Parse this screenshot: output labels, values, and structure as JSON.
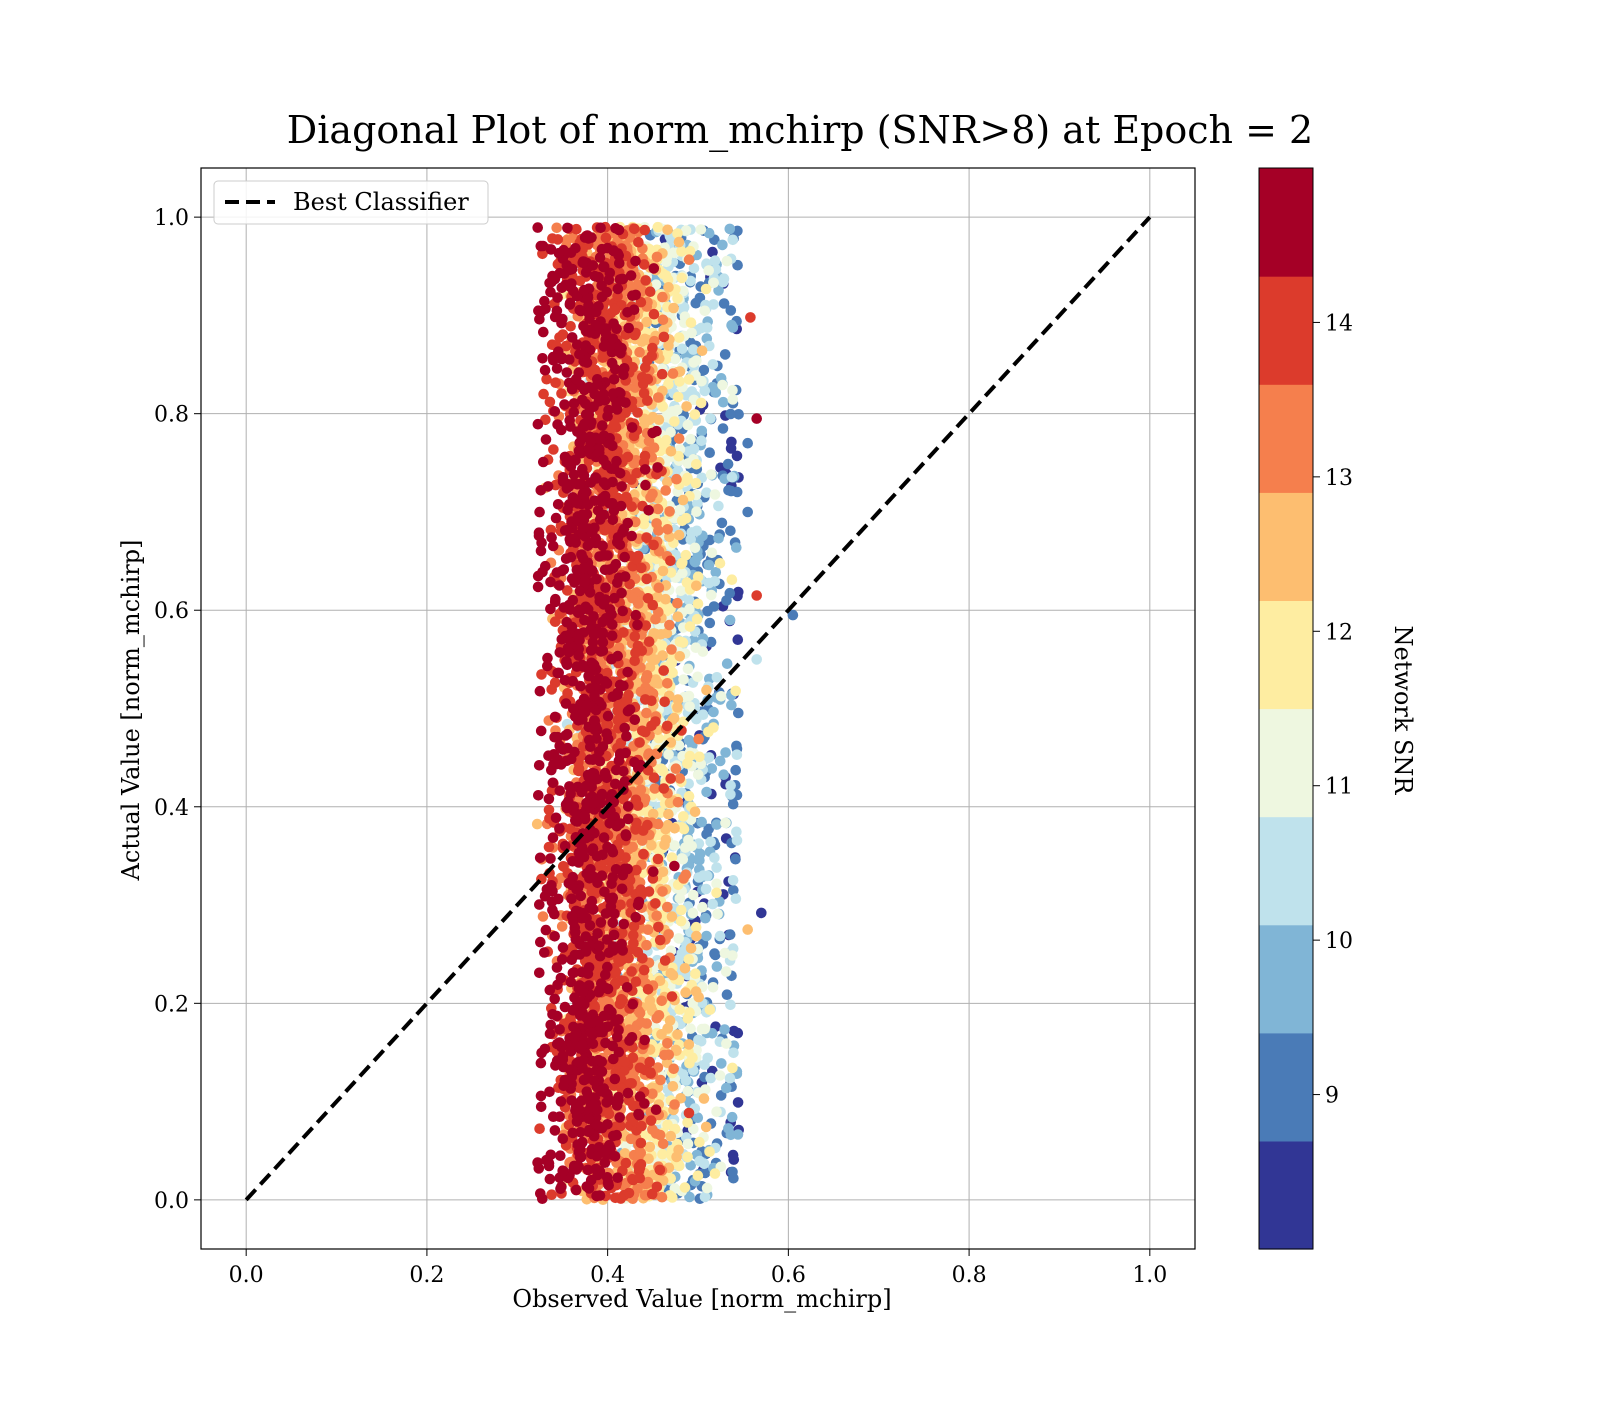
{
  "chart_data": {
    "type": "scatter",
    "title": "Diagonal Plot of norm_mchirp (SNR>8) at Epoch = 2",
    "xlabel": "Observed Value [norm_mchirp]",
    "ylabel": "Actual Value [norm_mchirp]",
    "xlim": [
      -0.05,
      1.05
    ],
    "ylim": [
      -0.05,
      1.05
    ],
    "x_ticks": [
      "0.0",
      "0.2",
      "0.4",
      "0.6",
      "0.8",
      "1.0"
    ],
    "y_ticks": [
      "0.0",
      "0.2",
      "0.4",
      "0.6",
      "0.8",
      "1.0"
    ],
    "grid": true,
    "legend": {
      "placement": "upper-left",
      "entries": [
        "Best Classifier"
      ]
    },
    "reference_line": {
      "name": "Best Classifier",
      "style": "dashed",
      "color": "#000000",
      "x": [
        0.0,
        1.0
      ],
      "y": [
        0.0,
        1.0
      ]
    },
    "scatter": {
      "description_of_distribution": "dense vertical band of points",
      "x_range": [
        0.32,
        0.57
      ],
      "y_range": [
        0.0,
        0.99
      ],
      "high_snr_x_center": 0.37,
      "low_snr_x_edge": 0.53,
      "outliers": [
        {
          "x": 0.605,
          "y": 0.595,
          "snr": 9.2
        },
        {
          "x": 0.57,
          "y": 0.292,
          "snr": 8.3
        },
        {
          "x": 0.565,
          "y": 0.795,
          "snr": 14.3
        },
        {
          "x": 0.565,
          "y": 0.615,
          "snr": 14.2
        },
        {
          "x": 0.565,
          "y": 0.55,
          "snr": 10.1
        },
        {
          "x": 0.558,
          "y": 0.898,
          "snr": 14.2
        },
        {
          "x": 0.555,
          "y": 0.77,
          "snr": 8.7
        },
        {
          "x": 0.555,
          "y": 0.7,
          "snr": 9.1
        },
        {
          "x": 0.555,
          "y": 0.275,
          "snr": 12.6
        }
      ]
    },
    "colorbar": {
      "label": "Network SNR",
      "colormap": "RdYlBu_r",
      "range": [
        8.0,
        15.0
      ],
      "ticks": [
        "9",
        "10",
        "11",
        "12",
        "13",
        "14"
      ],
      "bins": [
        {
          "from": 8.0,
          "to": 8.7,
          "color": "#313695"
        },
        {
          "from": 8.7,
          "to": 9.4,
          "color": "#4a7bb7"
        },
        {
          "from": 9.4,
          "to": 10.1,
          "color": "#80b5d6"
        },
        {
          "from": 10.1,
          "to": 10.8,
          "color": "#bfe2ec"
        },
        {
          "from": 10.8,
          "to": 11.5,
          "color": "#eef7e0"
        },
        {
          "from": 11.5,
          "to": 12.2,
          "color": "#feeda1"
        },
        {
          "from": 12.2,
          "to": 12.9,
          "color": "#fdbe70"
        },
        {
          "from": 12.9,
          "to": 13.6,
          "color": "#f57f4d"
        },
        {
          "from": 13.6,
          "to": 14.3,
          "color": "#dc3b2c"
        },
        {
          "from": 14.3,
          "to": 15.0,
          "color": "#a50026"
        }
      ]
    }
  }
}
